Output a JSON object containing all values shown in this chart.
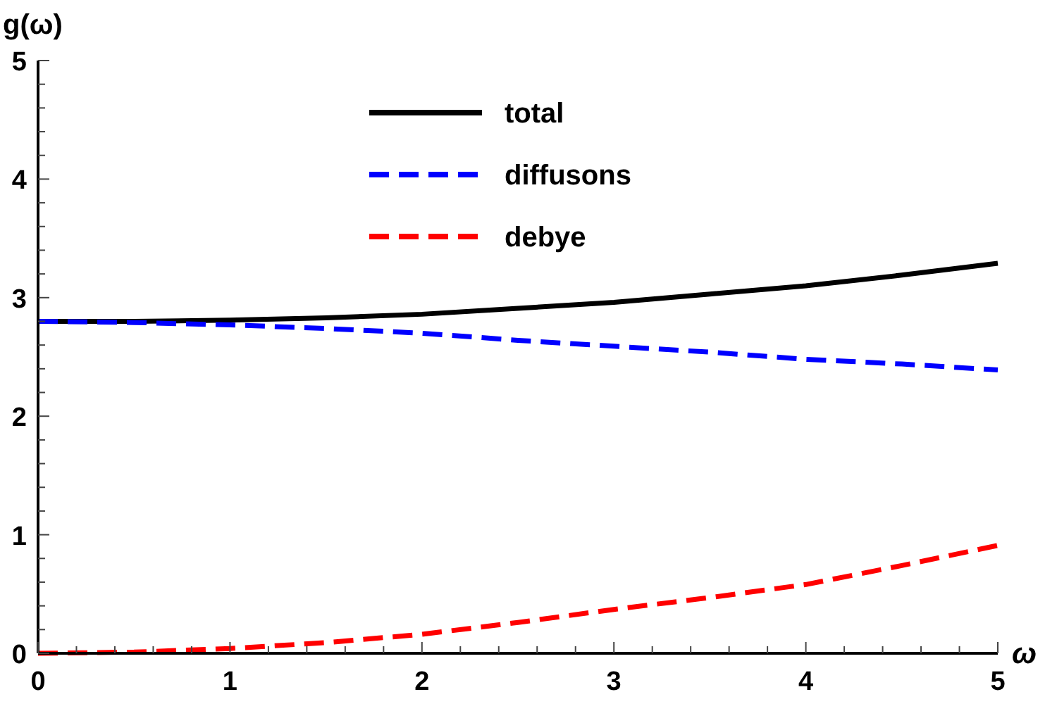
{
  "chart_data": {
    "type": "line",
    "xlabel": "ω",
    "ylabel": "g(ω)",
    "x": [
      0,
      0.5,
      1,
      1.5,
      2,
      2.5,
      3,
      3.5,
      4,
      4.5,
      5
    ],
    "xlim": [
      0,
      5
    ],
    "ylim": [
      0,
      5
    ],
    "xticks": [
      0,
      {
        "value": 0.2,
        "label": null
      },
      {
        "value": 0.4,
        "label": null
      },
      {
        "value": 0.6,
        "label": null
      },
      {
        "value": 0.8,
        "label": null
      },
      1,
      {
        "value": 1.2,
        "label": null
      },
      {
        "value": 1.4,
        "label": null
      },
      {
        "value": 1.6,
        "label": null
      },
      {
        "value": 1.8,
        "label": null
      },
      2,
      {
        "value": 2.2,
        "label": null
      },
      {
        "value": 2.4,
        "label": null
      },
      {
        "value": 2.6,
        "label": null
      },
      {
        "value": 2.8,
        "label": null
      },
      3,
      {
        "value": 3.2,
        "label": null
      },
      {
        "value": 3.4,
        "label": null
      },
      {
        "value": 3.6,
        "label": null
      },
      {
        "value": 3.8,
        "label": null
      },
      4,
      {
        "value": 4.2,
        "label": null
      },
      {
        "value": 4.4,
        "label": null
      },
      {
        "value": 4.6,
        "label": null
      },
      {
        "value": 4.8,
        "label": null
      },
      5
    ],
    "yticks": [
      0,
      {
        "value": 0.2,
        "label": null
      },
      {
        "value": 0.4,
        "label": null
      },
      {
        "value": 0.6,
        "label": null
      },
      {
        "value": 0.8,
        "label": null
      },
      1,
      {
        "value": 1.2,
        "label": null
      },
      {
        "value": 1.4,
        "label": null
      },
      {
        "value": 1.6,
        "label": null
      },
      {
        "value": 1.8,
        "label": null
      },
      2,
      {
        "value": 2.2,
        "label": null
      },
      {
        "value": 2.4,
        "label": null
      },
      {
        "value": 2.6,
        "label": null
      },
      {
        "value": 2.8,
        "label": null
      },
      3,
      {
        "value": 3.2,
        "label": null
      },
      {
        "value": 3.4,
        "label": null
      },
      {
        "value": 3.6,
        "label": null
      },
      {
        "value": 3.8,
        "label": null
      },
      4,
      {
        "value": 4.2,
        "label": null
      },
      {
        "value": 4.4,
        "label": null
      },
      {
        "value": 4.6,
        "label": null
      },
      {
        "value": 4.8,
        "label": null
      },
      5
    ],
    "legend": "top",
    "grid": false,
    "marker": "none",
    "series": [
      {
        "name": "total",
        "color": "#000000",
        "line_style": "solid",
        "values": [
          2.8,
          2.8,
          2.81,
          2.83,
          2.86,
          2.91,
          2.96,
          3.03,
          3.1,
          3.19,
          3.29
        ]
      },
      {
        "name": "diffusons",
        "color": "#0000ff",
        "line_style": "dashed",
        "values": [
          2.8,
          2.79,
          2.77,
          2.74,
          2.7,
          2.64,
          2.59,
          2.54,
          2.48,
          2.44,
          2.39
        ]
      },
      {
        "name": "debye",
        "color": "#ff0000",
        "line_style": "dashed",
        "values": [
          0,
          0.01,
          0.04,
          0.09,
          0.16,
          0.26,
          0.37,
          0.47,
          0.58,
          0.74,
          0.91
        ]
      }
    ]
  }
}
